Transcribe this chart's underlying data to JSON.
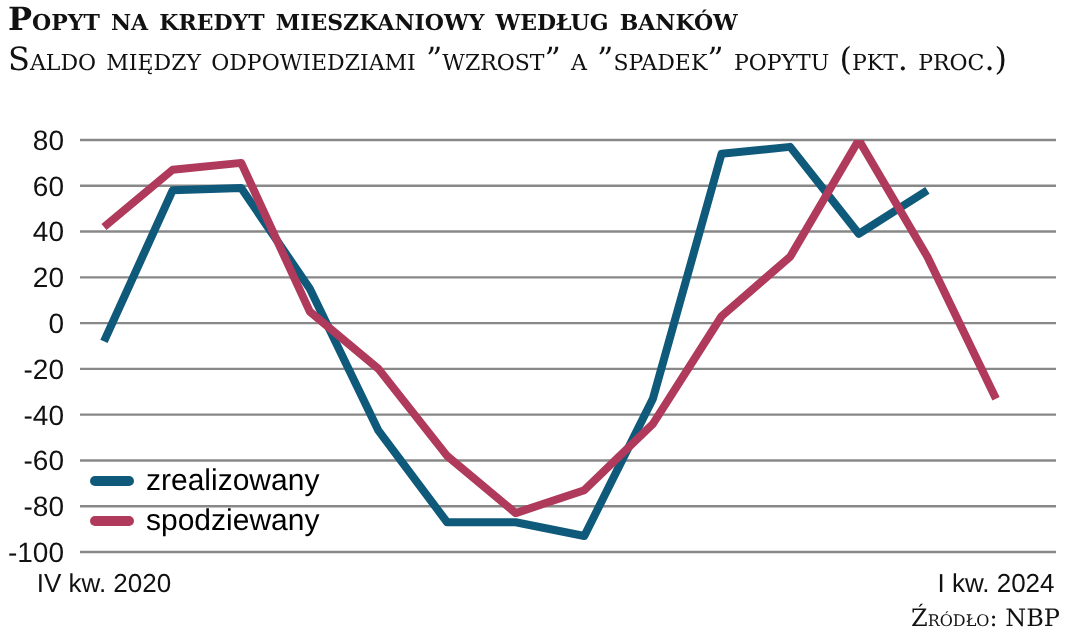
{
  "chart_data": {
    "type": "line",
    "title": "Popyt na kredyt mieszkaniowy według banków",
    "subtitle": "Saldo między odpowiedziami ”wzrost” a ”spadek” popytu (pkt. proc.)",
    "annotations": [
      "Źródło: NBP"
    ],
    "categories": [
      "IV kw. 2020",
      null,
      null,
      null,
      null,
      null,
      null,
      null,
      null,
      null,
      null,
      null,
      null,
      "I kw. 2024"
    ],
    "series": [
      {
        "name": "zrealizowany",
        "color": "#0f5a7a",
        "values": [
          -8,
          58,
          59,
          15,
          -47,
          -87,
          -87,
          -93,
          -33,
          74,
          77,
          39,
          58,
          null
        ]
      },
      {
        "name": "spodziewany",
        "color": "#b03a5b",
        "values": [
          42,
          67,
          70,
          5,
          -20,
          -58,
          -83,
          -73,
          -44,
          3,
          29,
          80,
          29,
          -33
        ]
      }
    ],
    "ylim": [
      -100,
      80
    ],
    "yticks": [
      -100,
      -80,
      -60,
      -40,
      -20,
      0,
      20,
      40,
      60,
      80
    ],
    "grid": "y",
    "legend": "bottom left",
    "marker": "none",
    "line_style": "solid"
  }
}
